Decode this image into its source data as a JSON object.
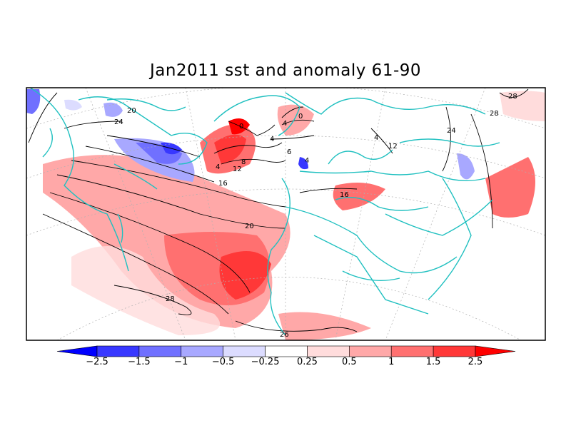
{
  "title": "Jan2011 sst and anomaly 61-90",
  "colorbar": {
    "labels": [
      "-2.5",
      "-1.5",
      "-1",
      "-0.5",
      "-0.25",
      "0.25",
      "0.5",
      "1",
      "1.5",
      "2.5"
    ],
    "colors": [
      "#0000ff",
      "#3838ff",
      "#7070ff",
      "#a8a8ff",
      "#dcdcff",
      "#ffffff",
      "#ffdcdc",
      "#ffa8a8",
      "#ff7070",
      "#ff3838",
      "#ff0000"
    ]
  },
  "contour_labels": [
    "0",
    "4",
    "4",
    "6",
    "8",
    "12",
    "16",
    "16",
    "20",
    "20",
    "24",
    "24",
    "28",
    "28",
    "28",
    "26",
    "4",
    "0",
    "4",
    "12",
    "4"
  ],
  "colors": {
    "land_outline": "#20c0c0",
    "contour": "#000000",
    "grid": "#b0b0b0"
  }
}
